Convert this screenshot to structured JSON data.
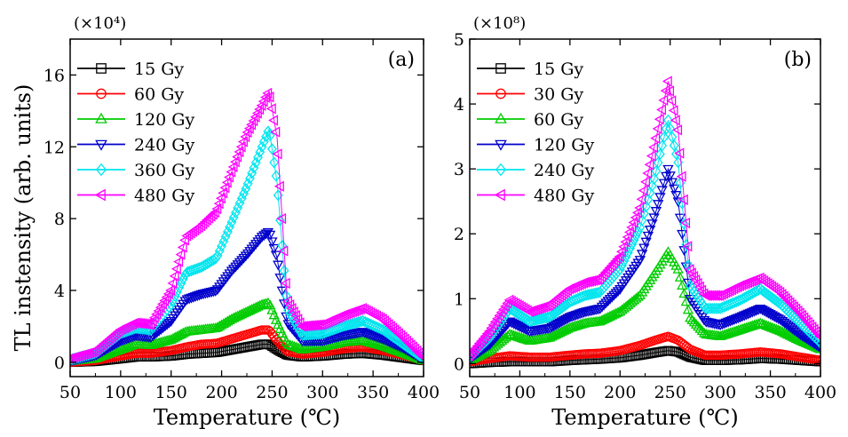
{
  "y_label": "TL instensity (arb. units)",
  "chart_data": [
    {
      "type": "scatter",
      "panel": "(a)",
      "multiplier": "(×10⁴)",
      "xlabel": "Temperature (℃)",
      "xlim": [
        50,
        400
      ],
      "ylim": [
        -0.8,
        18
      ],
      "x_ticks": [
        "50",
        "100",
        "150",
        "200",
        "250",
        "300",
        "350",
        "400"
      ],
      "y_ticks": [
        "0",
        "4",
        "8",
        "12",
        "16"
      ],
      "legend_position": "top-left",
      "x": [
        50,
        75,
        100,
        115,
        130,
        150,
        165,
        180,
        195,
        210,
        225,
        240,
        247,
        255,
        265,
        280,
        300,
        320,
        340,
        360,
        380,
        400
      ],
      "series": [
        {
          "name": "15 Gy",
          "color": "#000000",
          "marker": "square",
          "values": [
            0.0,
            0.05,
            0.2,
            0.3,
            0.3,
            0.35,
            0.45,
            0.5,
            0.55,
            0.7,
            0.85,
            1.0,
            1.0,
            0.7,
            0.4,
            0.3,
            0.35,
            0.45,
            0.5,
            0.4,
            0.25,
            0.1
          ]
        },
        {
          "name": "60 Gy",
          "color": "#ff0000",
          "marker": "circle",
          "values": [
            0.0,
            0.1,
            0.35,
            0.5,
            0.5,
            0.65,
            0.85,
            1.0,
            1.05,
            1.3,
            1.55,
            1.8,
            1.8,
            1.2,
            0.6,
            0.45,
            0.55,
            0.75,
            0.85,
            0.65,
            0.4,
            0.1
          ]
        },
        {
          "name": "120 Gy",
          "color": "#00cc00",
          "marker": "triangle-up",
          "values": [
            0.05,
            0.2,
            0.7,
            1.0,
            0.95,
            1.25,
            1.7,
            1.8,
            1.9,
            2.4,
            2.8,
            3.2,
            3.3,
            2.2,
            1.0,
            0.7,
            0.85,
            1.1,
            1.2,
            0.9,
            0.5,
            0.1
          ]
        },
        {
          "name": "240 Gy",
          "color": "#0000cc",
          "marker": "triangle-down",
          "values": [
            0.1,
            0.4,
            1.2,
            1.5,
            1.4,
            2.3,
            3.5,
            3.8,
            4.0,
            5.1,
            6.0,
            7.0,
            7.3,
            5.8,
            2.2,
            1.2,
            1.2,
            1.5,
            1.7,
            1.3,
            0.8,
            0.15
          ]
        },
        {
          "name": "360 Gy",
          "color": "#00e5ee",
          "marker": "diamond",
          "values": [
            0.15,
            0.5,
            1.6,
            1.9,
            1.8,
            3.2,
            5.0,
            5.3,
            5.8,
            7.8,
            9.8,
            12.0,
            13.0,
            10.0,
            3.0,
            1.5,
            1.6,
            2.0,
            2.3,
            1.8,
            1.0,
            0.2
          ]
        },
        {
          "name": "480 Gy",
          "color": "#ff00ff",
          "marker": "triangle-left",
          "values": [
            0.2,
            0.6,
            1.8,
            2.2,
            2.1,
            4.0,
            7.0,
            7.6,
            8.4,
            10.6,
            12.7,
            14.3,
            15.1,
            12.5,
            3.5,
            2.0,
            2.1,
            2.6,
            3.0,
            2.4,
            1.4,
            0.3
          ]
        }
      ]
    },
    {
      "type": "scatter",
      "panel": "(b)",
      "multiplier": "(×10⁸)",
      "xlabel": "Temperature (℃)",
      "xlim": [
        50,
        400
      ],
      "ylim": [
        -0.2,
        5
      ],
      "x_ticks": [
        "50",
        "100",
        "150",
        "200",
        "250",
        "300",
        "350",
        "400"
      ],
      "y_ticks": [
        "0",
        "1",
        "2",
        "3",
        "4",
        "5"
      ],
      "legend_position": "top-left",
      "x": [
        50,
        70,
        90,
        110,
        130,
        150,
        165,
        180,
        200,
        220,
        235,
        248,
        258,
        270,
        285,
        300,
        320,
        340,
        360,
        380,
        400
      ],
      "series": [
        {
          "name": "15 Gy",
          "color": "#000000",
          "marker": "square",
          "values": [
            0.0,
            0.02,
            0.03,
            0.03,
            0.03,
            0.05,
            0.06,
            0.07,
            0.09,
            0.13,
            0.17,
            0.2,
            0.18,
            0.1,
            0.05,
            0.05,
            0.06,
            0.08,
            0.07,
            0.05,
            0.03
          ]
        },
        {
          "name": "30 Gy",
          "color": "#ff0000",
          "marker": "circle",
          "values": [
            0.03,
            0.08,
            0.12,
            0.1,
            0.1,
            0.13,
            0.15,
            0.16,
            0.2,
            0.28,
            0.36,
            0.42,
            0.36,
            0.22,
            0.13,
            0.13,
            0.15,
            0.18,
            0.15,
            0.1,
            0.05
          ]
        },
        {
          "name": "60 Gy",
          "color": "#00cc00",
          "marker": "triangle-up",
          "values": [
            0.05,
            0.2,
            0.45,
            0.35,
            0.4,
            0.55,
            0.62,
            0.65,
            0.8,
            1.05,
            1.4,
            1.72,
            1.45,
            0.7,
            0.45,
            0.42,
            0.52,
            0.62,
            0.5,
            0.35,
            0.22
          ]
        },
        {
          "name": "120 Gy",
          "color": "#0000cc",
          "marker": "triangle-down",
          "values": [
            0.08,
            0.3,
            0.65,
            0.5,
            0.55,
            0.72,
            0.8,
            0.85,
            1.15,
            1.6,
            2.3,
            3.0,
            2.5,
            1.0,
            0.65,
            0.6,
            0.72,
            0.85,
            0.68,
            0.45,
            0.25
          ]
        },
        {
          "name": "240 Gy",
          "color": "#00e5ee",
          "marker": "diamond",
          "values": [
            0.1,
            0.4,
            0.85,
            0.65,
            0.72,
            0.95,
            1.05,
            1.1,
            1.45,
            2.1,
            2.9,
            3.75,
            3.1,
            1.2,
            0.85,
            0.85,
            0.98,
            1.15,
            0.92,
            0.62,
            0.32
          ]
        },
        {
          "name": "480 Gy",
          "color": "#ff00ff",
          "marker": "triangle-left",
          "values": [
            0.12,
            0.5,
            0.98,
            0.8,
            0.9,
            1.15,
            1.25,
            1.3,
            1.65,
            2.4,
            3.4,
            4.35,
            3.6,
            1.45,
            1.05,
            1.05,
            1.2,
            1.32,
            1.1,
            0.78,
            0.42
          ]
        }
      ]
    }
  ]
}
